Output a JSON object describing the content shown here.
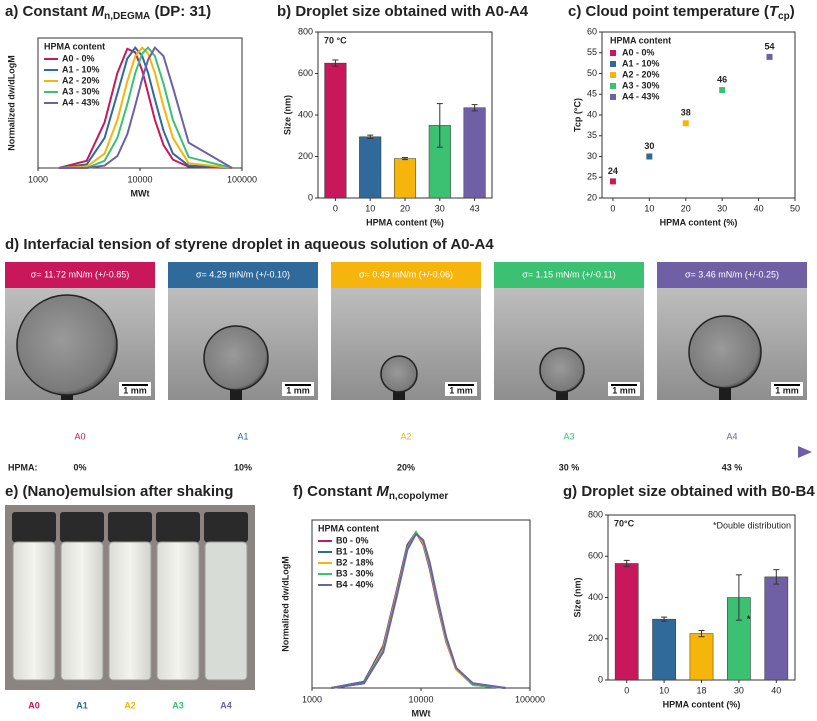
{
  "chart_data": [
    {
      "type": "line",
      "title": [
        "a) Constant ",
        "M",
        "n,DEGMA",
        " (DP: 31)"
      ],
      "xlabel": "MWt",
      "ylabel": "Normalized dw/dLogM",
      "log_x": true,
      "xlim": [
        1000,
        100000
      ],
      "xticks": [
        1000,
        10000,
        100000
      ],
      "ylim": [
        0,
        1.08
      ],
      "legend_title": "HPMA content",
      "x": [
        1600,
        3000,
        4500,
        6000,
        7500,
        9000,
        10500,
        12000,
        14000,
        17000,
        21000,
        30000,
        80000
      ],
      "series": [
        {
          "name": "A0 - 0%",
          "color": "#c8175a",
          "values": [
            0,
            0.06,
            0.38,
            0.79,
            0.99,
            0.96,
            0.81,
            0.62,
            0.4,
            0.19,
            0.07,
            0.01,
            0
          ]
        },
        {
          "name": "A1 - 10%",
          "color": "#2f6a9b",
          "values": [
            0,
            0.03,
            0.25,
            0.62,
            0.91,
            1,
            0.93,
            0.79,
            0.57,
            0.31,
            0.12,
            0.02,
            0
          ]
        },
        {
          "name": "A2 - 20%",
          "color": "#f5b50d",
          "values": [
            0,
            0.01,
            0.12,
            0.4,
            0.72,
            0.93,
            1,
            0.95,
            0.79,
            0.51,
            0.25,
            0.04,
            0
          ]
        },
        {
          "name": "A3 - 30%",
          "color": "#3cc173",
          "values": [
            0,
            0,
            0.06,
            0.25,
            0.53,
            0.79,
            0.95,
            1,
            0.93,
            0.7,
            0.4,
            0.09,
            0
          ]
        },
        {
          "name": "A4 - 43%",
          "color": "#6f60a6",
          "values": [
            0,
            0,
            0.02,
            0.1,
            0.28,
            0.52,
            0.74,
            0.9,
            1,
            0.93,
            0.67,
            0.21,
            0
          ]
        }
      ]
    },
    {
      "type": "bar",
      "title": "b) Droplet size obtained with A0-A4",
      "xlabel": "HPMA content (%)",
      "ylabel": "Size (nm)",
      "annotation": "70 °C",
      "categories": [
        "0",
        "10",
        "20",
        "30",
        "43"
      ],
      "values": [
        650,
        295,
        190,
        350,
        435
      ],
      "errors": [
        15,
        8,
        5,
        105,
        15
      ],
      "colors": [
        "#c8175a",
        "#2f6a9b",
        "#f5b50d",
        "#3cc173",
        "#6f60a6"
      ],
      "ylim": [
        0,
        800
      ],
      "yticks": [
        0,
        200,
        400,
        600,
        800
      ]
    },
    {
      "type": "scatter",
      "title": [
        "c) Cloud point temperature (",
        "T",
        "cp",
        ")"
      ],
      "xlabel": "HPMA content (%)",
      "ylabel": "Tcp (°C)",
      "legend_title": "HPMA content",
      "xlim": [
        -3,
        50
      ],
      "xticks": [
        0,
        10,
        20,
        30,
        40,
        50
      ],
      "ylim": [
        20,
        60
      ],
      "yticks": [
        20,
        25,
        30,
        35,
        40,
        45,
        50,
        55,
        60
      ],
      "series": [
        {
          "name": "A0 - 0%",
          "color": "#c8175a",
          "x": [
            0
          ],
          "values": [
            24
          ]
        },
        {
          "name": "A1 - 10%",
          "color": "#2f6a9b",
          "x": [
            10
          ],
          "values": [
            30
          ]
        },
        {
          "name": "A2 - 20%",
          "color": "#f5b50d",
          "x": [
            20
          ],
          "values": [
            38
          ]
        },
        {
          "name": "A3 - 30%",
          "color": "#3cc173",
          "x": [
            30
          ],
          "values": [
            46
          ]
        },
        {
          "name": "A4 - 43%",
          "color": "#6f60a6",
          "x": [
            43
          ],
          "values": [
            54
          ]
        }
      ]
    },
    {
      "type": "line",
      "title": [
        "f) Constant ",
        "M",
        "n,copolymer",
        ""
      ],
      "xlabel": "MWt",
      "ylabel": "Normalized dw/dLogM",
      "log_x": true,
      "xlim": [
        1000,
        100000
      ],
      "xticks": [
        1000,
        10000,
        100000
      ],
      "ylim": [
        0,
        1.08
      ],
      "legend_title": "HPMA content",
      "x": [
        1500,
        3000,
        4500,
        6000,
        7500,
        9000,
        10500,
        12000,
        14000,
        17000,
        21000,
        30000,
        60000
      ],
      "series": [
        {
          "name": "B0 - 0%",
          "color": "#c8175a",
          "values": [
            0,
            0.04,
            0.27,
            0.63,
            0.92,
            1,
            0.92,
            0.77,
            0.55,
            0.3,
            0.12,
            0.02,
            0
          ]
        },
        {
          "name": "B1 - 10%",
          "color": "#2f6a9b",
          "values": [
            0,
            0.04,
            0.26,
            0.62,
            0.91,
            1,
            0.93,
            0.78,
            0.56,
            0.31,
            0.12,
            0.02,
            0
          ]
        },
        {
          "name": "B2 - 18%",
          "color": "#f5b50d",
          "values": [
            0,
            0.03,
            0.25,
            0.61,
            0.9,
            1,
            0.93,
            0.79,
            0.57,
            0.31,
            0.12,
            0.02,
            0
          ]
        },
        {
          "name": "B3 - 30%",
          "color": "#3cc173",
          "values": [
            0,
            0.03,
            0.24,
            0.6,
            0.9,
            1,
            0.94,
            0.8,
            0.58,
            0.32,
            0.13,
            0.02,
            0
          ]
        },
        {
          "name": "B4 - 40%",
          "color": "#6f60a6",
          "values": [
            0,
            0.03,
            0.23,
            0.59,
            0.89,
            0.99,
            0.95,
            0.81,
            0.59,
            0.33,
            0.13,
            0.03,
            0
          ]
        }
      ]
    },
    {
      "type": "bar",
      "title": "g) Droplet size obtained with B0-B4",
      "xlabel": "HPMA content (%)",
      "ylabel": "Size (nm)",
      "annotation": "70°C",
      "note": "*Double distribution",
      "marker": "*",
      "categories": [
        "0",
        "10",
        "18",
        "30",
        "40"
      ],
      "values": [
        565,
        295,
        225,
        400,
        500
      ],
      "errors": [
        15,
        10,
        15,
        110,
        35
      ],
      "colors": [
        "#c8175a",
        "#2f6a9b",
        "#f5b50d",
        "#3cc173",
        "#6f60a6"
      ],
      "ylim": [
        0,
        800
      ],
      "yticks": [
        0,
        200,
        400,
        600,
        800
      ]
    }
  ],
  "interfacial_tension": {
    "title": "d) Interfacial tension of styrene droplet in aqueous solution of A0-A4",
    "panels": [
      {
        "label": "σ= 11.72 mN/m (+/-0.85)",
        "color": "#c8175a",
        "scale": "1 mm"
      },
      {
        "label": "σ= 4.29 mN/m (+/-0.10)",
        "color": "#2f6a9b",
        "scale": "1 mm"
      },
      {
        "label": "σ= 0.49 mN/m (+/-0.06)",
        "color": "#f5b50d",
        "scale": "1 mm"
      },
      {
        "label": "σ= 1.15  mN/m (+/-0.11)",
        "color": "#3cc173",
        "scale": "1 mm"
      },
      {
        "label": "σ= 3.46 mN/m (+/-0.25)",
        "color": "#6f60a6",
        "scale": "1 mm"
      }
    ],
    "axis_label": "HPMA:",
    "samples": [
      "A0",
      "A1",
      "A2",
      "A3",
      "A4"
    ],
    "contents": [
      "0%",
      "10%",
      "20%",
      "30 %",
      "43 %"
    ]
  },
  "emulsion": {
    "title": "e) (Nano)emulsion after shaking",
    "samples": [
      "A0",
      "A1",
      "A2",
      "A3",
      "A4"
    ],
    "colors": [
      "#c8175a",
      "#2f6a9b",
      "#f5b50d",
      "#3cc173",
      "#6f60a6"
    ]
  }
}
